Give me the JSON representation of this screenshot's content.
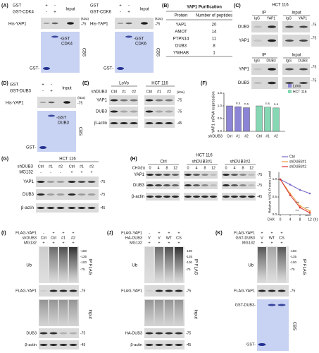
{
  "panels": {
    "A": {
      "label": "(A)",
      "left": {
        "rows": [
          "GST",
          "GST-CDK4"
        ],
        "signs": [
          [
            "+",
            "-"
          ],
          [
            "-",
            "+"
          ]
        ],
        "input": "Input",
        "kda": "(kDa)",
        "probe": "His-YAP1",
        "marker": "-75",
        "band": [
          "-GST",
          "CDK4"
        ],
        "gst": "GST-",
        "stain": "CBS"
      },
      "right": {
        "rows": [
          "GST",
          "GST-CDK6"
        ],
        "signs": [
          [
            "+",
            "-"
          ],
          [
            "-",
            "+"
          ]
        ],
        "input": "Input",
        "kda": "(kDa)",
        "probe": "His-YAP1",
        "marker": "-75",
        "band": [
          "-GST",
          "CDK6"
        ],
        "gst": "GST-",
        "stain": "CBS"
      }
    },
    "B": {
      "label": "(B)",
      "title": "YAP1 Purification",
      "header": [
        "Protein",
        "Number of peptides"
      ],
      "rows": [
        [
          "YAP1",
          "20"
        ],
        [
          "AMOT",
          "14"
        ],
        [
          "PTPN14",
          "11"
        ],
        [
          "DUB3",
          "8"
        ],
        [
          "YWHAB",
          "1"
        ]
      ]
    },
    "C": {
      "label": "(C)",
      "cell": "HCT 116",
      "top": {
        "ip": "IP",
        "input": "Input",
        "lanes": [
          "IgG",
          "YAP1",
          "IgG",
          "YAP1"
        ],
        "probes": [
          "DUB3",
          "YAP1"
        ],
        "markers": [
          "-75",
          "-75"
        ]
      },
      "bottom": {
        "ip": "IP",
        "input": "Input",
        "lanes": [
          "IgG",
          "DUB3",
          "IgG",
          "DUB3"
        ],
        "probes": [
          "YAP1",
          "DUB3"
        ],
        "markers": [
          "-75",
          "-75"
        ]
      }
    },
    "D": {
      "label": "(D)",
      "rows": [
        "GST",
        "GST-DUB3"
      ],
      "signs": [
        [
          "+",
          "-"
        ],
        [
          "-",
          "+"
        ]
      ],
      "input": "Input",
      "kda": "(kDa)",
      "probe": "His-YAP1",
      "marker": "-75",
      "band": [
        "-GST",
        "DUB3"
      ],
      "gst": "GST-",
      "stain": "CBS"
    },
    "E": {
      "label": "(E)",
      "cells": [
        "LoVo",
        "HCT 116"
      ],
      "row": "shDUB3",
      "lanes": [
        "Ctrl",
        "#1",
        "#2",
        "Ctrl",
        "#1",
        "#2"
      ],
      "probes": [
        "YAP1",
        "DUB3",
        "β-actin"
      ],
      "kda": "(kDa)",
      "markers": [
        "-75",
        "-75",
        "-45"
      ]
    },
    "F": {
      "label": "(F)"
    },
    "G": {
      "label": "(G)",
      "cell": "HCT 116",
      "rows": [
        "shDUB3",
        "MG132"
      ],
      "lanes": [
        [
          "Ctrl",
          "#1",
          "#2",
          "Ctrl",
          "#1",
          "#2"
        ],
        [
          "-",
          "-",
          "-",
          "+",
          "+",
          "+"
        ]
      ],
      "probes": [
        "YAP1",
        "DUB3",
        "β-actin"
      ],
      "markers": [
        "-75",
        "-75",
        "-45"
      ]
    },
    "H": {
      "label": "(H)",
      "cell": "HCT 116",
      "groups": [
        "Ctrl",
        "shDUB3#1",
        "shDUB3#2"
      ],
      "row": "CHX(h)",
      "lanes": [
        "0",
        "4",
        "8",
        "12",
        "0",
        "4",
        "8",
        "12",
        "0",
        "4",
        "8",
        "12"
      ],
      "probes": [
        "YAP1",
        "DUB3",
        "β-actin"
      ],
      "markers": [
        "-75",
        "-75",
        "-45"
      ]
    },
    "I": {
      "label": "(I)",
      "rows": [
        "FLAG-YAP1",
        "shDUB3",
        "MG132"
      ],
      "lanes": [
        [
          "-",
          "+",
          "+",
          "+"
        ],
        [
          "Ctrl",
          "Ctrl",
          "#1",
          "#2"
        ],
        [
          "+",
          "+",
          "+",
          "+"
        ]
      ],
      "ub": "Ub",
      "ladder": [
        "-180",
        "-135",
        "-100",
        "-75"
      ],
      "ip": "IP FLAG",
      "flag": "FLAG-YAP1",
      "flagMarker": "-75",
      "input": "Input",
      "probes": [
        "DUB3",
        "β-actin"
      ],
      "markers": [
        "-75",
        "-45"
      ]
    },
    "J": {
      "label": "(J)",
      "rows": [
        "FLAG-YAP1",
        "HA-DUB3",
        "MG132"
      ],
      "lanes": [
        [
          "-",
          "+",
          "+",
          "+"
        ],
        [
          "V",
          "V",
          "WT",
          "CS"
        ],
        [
          "+",
          "+",
          "+",
          "+"
        ]
      ],
      "ub": "Ub",
      "ladder": [
        "-180",
        "-135",
        "-100",
        "-75"
      ],
      "ip": "IP FLAG",
      "flag": "FLAG-YAP1",
      "flagMarker": "-75",
      "input": "Input",
      "probes": [
        "HA-DUB3",
        "β-actin"
      ],
      "markers": [
        "-75",
        "-45"
      ]
    },
    "K": {
      "label": "(K)",
      "rows": [
        "FLAG-YAP1",
        "GST-DUB3",
        "MG132"
      ],
      "lanes": [
        [
          "+",
          "+",
          "+"
        ],
        [
          "V",
          "WT",
          "CS"
        ],
        [
          "+",
          "+",
          "+"
        ]
      ],
      "ub": "Ub",
      "ladder": [
        "-180",
        "-135",
        "-100",
        "-75"
      ],
      "ip": "IP FLAG",
      "flag": "FLAG-YAP1",
      "flagMarker": "-75",
      "gstdub": "GST-DUB3-",
      "gst": "GST-",
      "stain": "CBS"
    }
  },
  "chart_data": [
    {
      "type": "bar",
      "ylabel": "YAP1 mRNA expression",
      "xlabel": "shDUB3",
      "categories": [
        "Ctrl",
        "#1",
        "#2"
      ],
      "series": [
        {
          "name": "LoVo",
          "color": "#8c84d6",
          "values": [
            1.0,
            0.97,
            0.93
          ]
        },
        {
          "name": "HCT 116",
          "color": "#86d8b4",
          "values": [
            1.0,
            0.95,
            0.92
          ]
        }
      ],
      "ylim": [
        0,
        1.5
      ],
      "yticks": [
        {
          "value": 0,
          "label": "0.0"
        },
        {
          "value": 0.5,
          "label": "0.5"
        },
        {
          "value": 1,
          "label": "1.0"
        },
        {
          "value": 1.5,
          "label": "1.5"
        }
      ],
      "annotations": [
        "n.s",
        "n.s",
        "n.s",
        "n.s"
      ]
    },
    {
      "type": "line",
      "ylabel": "Relative YAP1 Protein Level",
      "xlabel": "CHX",
      "xunit": "(h)",
      "x": [
        0,
        4,
        8,
        12
      ],
      "series": [
        {
          "name": "Ctrl",
          "color": "#7b68c8",
          "values": [
            1.0,
            0.85,
            0.7,
            0.6
          ]
        },
        {
          "name": "shDUB3#1",
          "color": "#e89a3c",
          "values": [
            1.0,
            0.6,
            0.25,
            0.1
          ]
        },
        {
          "name": "shDUB3#2",
          "color": "#d83030",
          "values": [
            1.0,
            0.55,
            0.2,
            0.05
          ]
        }
      ],
      "xlim": [
        0,
        12
      ],
      "xticks": [
        0,
        4,
        8,
        12
      ],
      "ylim": [
        0,
        1.2
      ],
      "yticks": [
        {
          "value": 0,
          "label": "0.0"
        },
        {
          "value": 0.5,
          "label": "0.5"
        },
        {
          "value": 1,
          "label": "1.0"
        }
      ],
      "annotations": [
        "***",
        "***",
        "***",
        "***"
      ]
    }
  ]
}
